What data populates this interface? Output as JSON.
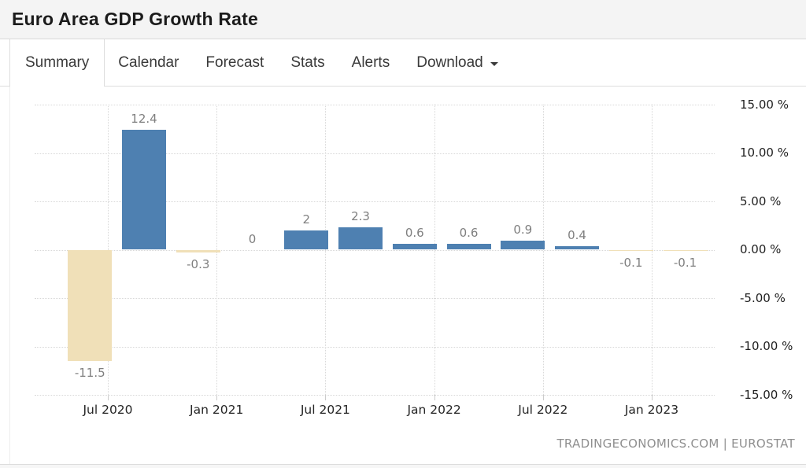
{
  "header": {
    "title": "Euro Area GDP Growth Rate"
  },
  "tabs": [
    {
      "label": "Summary",
      "active": true
    },
    {
      "label": "Calendar",
      "active": false
    },
    {
      "label": "Forecast",
      "active": false
    },
    {
      "label": "Stats",
      "active": false
    },
    {
      "label": "Alerts",
      "active": false
    },
    {
      "label": "Download",
      "active": false,
      "has_dropdown": true
    }
  ],
  "chart_data": {
    "type": "bar",
    "title": "Euro Area GDP Growth Rate",
    "unit": "%",
    "values": [
      -11.5,
      12.4,
      -0.3,
      0,
      2,
      2.3,
      0.6,
      0.6,
      0.9,
      0.4,
      -0.1,
      -0.1
    ],
    "value_labels": [
      "-11.5",
      "12.4",
      "-0.3",
      "0",
      "2",
      "2.3",
      "0.6",
      "0.6",
      "0.9",
      "0.4",
      "-0.1",
      "-0.1"
    ],
    "x_axis": {
      "tick_labels": [
        "Jul 2020",
        "Jan 2021",
        "Jul 2021",
        "Jan 2022",
        "Jul 2022",
        "Jan 2023"
      ]
    },
    "y_axis": {
      "ticks": [
        {
          "label": "15.00 %",
          "value": 15
        },
        {
          "label": "10.00 %",
          "value": 10
        },
        {
          "label": "5.00 %",
          "value": 5
        },
        {
          "label": "0.00 %",
          "value": 0
        },
        {
          "label": "-5.00 %",
          "value": -5
        },
        {
          "label": "-10.00 %",
          "value": -10
        },
        {
          "label": "-15.00 %",
          "value": -15
        }
      ]
    },
    "ylim": [
      -15,
      15
    ],
    "grid": true,
    "legend": false,
    "colors": {
      "positive_bar": "#4e80b1",
      "negative_bar": "#f0e0b8"
    },
    "attribution": "TRADINGECONOMICS.COM | EUROSTAT"
  }
}
